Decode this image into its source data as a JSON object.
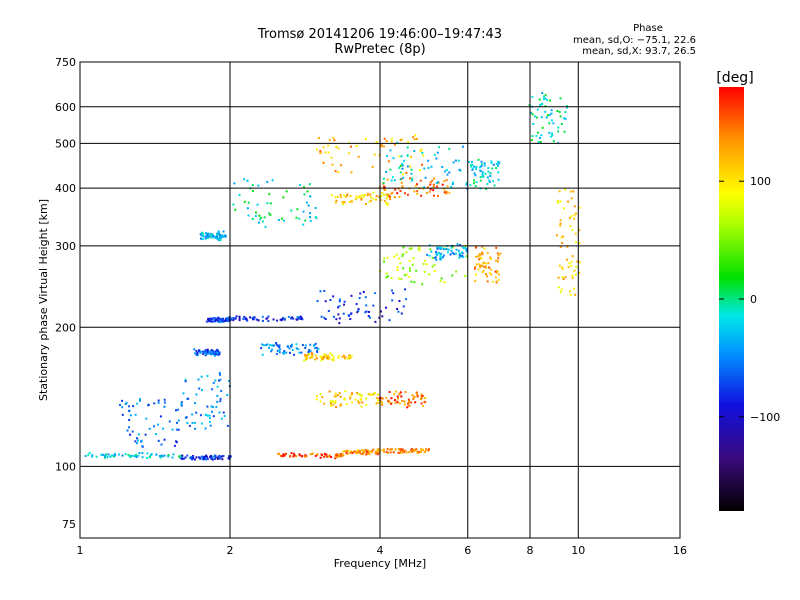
{
  "chart_data": {
    "type": "scatter",
    "title": "Tromsø 20141206 19:46:00–19:47:43",
    "subtitle": "RwPretec (8p)",
    "xlabel": "Frequency [MHz]",
    "ylabel": "Stationary phase Virtual Height [km]",
    "x_scale": "log",
    "y_scale": "log",
    "xlim": [
      1,
      16
    ],
    "ylim": [
      70,
      750
    ],
    "x_ticks": [
      "1",
      "2",
      "4",
      "6",
      "8",
      "10",
      "16"
    ],
    "y_ticks": [
      "75",
      "100",
      "200",
      "300",
      "400",
      "500",
      "600",
      "750"
    ],
    "grid": true,
    "stats": {
      "heading": "Phase",
      "line_o": "mean, sd,O: −75.1, 22.6",
      "line_x": "mean, sd,X:  93.7, 26.5"
    },
    "colorbar": {
      "label": "[deg]",
      "ticks": [
        "100",
        "0",
        "−100"
      ],
      "tick_values": [
        100,
        0,
        -100
      ],
      "range": [
        -180,
        180
      ]
    },
    "traces": [
      {
        "x": [
          1.0,
          1.6
        ],
        "y": [
          105,
          106
        ],
        "phase": -30
      },
      {
        "x": [
          1.6,
          2.0
        ],
        "y": [
          104.5,
          104.5
        ],
        "phase": -100
      },
      {
        "x": [
          2.5,
          3.4
        ],
        "y": [
          105,
          106
        ],
        "phase": 160
      },
      {
        "x": [
          3.4,
          4.0
        ],
        "y": [
          107,
          108
        ],
        "phase": 140
      },
      {
        "x": [
          4.0,
          5.0
        ],
        "y": [
          108,
          108
        ],
        "phase": 140
      },
      {
        "x": [
          1.2,
          1.6
        ],
        "y": [
          110,
          140
        ],
        "phase": -70
      },
      {
        "x": [
          1.6,
          2.0
        ],
        "y": [
          120,
          160
        ],
        "phase": -60
      },
      {
        "x": [
          1.7,
          1.9
        ],
        "y": [
          175,
          178
        ],
        "phase": -85
      },
      {
        "x": [
          1.8,
          2.0
        ],
        "y": [
          207,
          208
        ],
        "phase": -95
      },
      {
        "x": [
          1.75,
          1.95
        ],
        "y": [
          310,
          320
        ],
        "phase": -40
      },
      {
        "x": [
          2.0,
          3.0
        ],
        "y": [
          330,
          420
        ],
        "phase": -20
      },
      {
        "x": [
          2.3,
          3.0
        ],
        "y": [
          175,
          185
        ],
        "phase": -60
      },
      {
        "x": [
          2.8,
          3.5
        ],
        "y": [
          170,
          175
        ],
        "phase": 110
      },
      {
        "x": [
          3.0,
          4.0
        ],
        "y": [
          135,
          145
        ],
        "phase": 110
      },
      {
        "x": [
          4.0,
          5.0
        ],
        "y": [
          135,
          145
        ],
        "phase": 150
      },
      {
        "x": [
          3.2,
          4.2
        ],
        "y": [
          370,
          390
        ],
        "phase": 110
      },
      {
        "x": [
          4.0,
          5.5
        ],
        "y": [
          380,
          420
        ],
        "phase": 150
      },
      {
        "x": [
          3.0,
          5.0
        ],
        "y": [
          430,
          520
        ],
        "phase": 120
      },
      {
        "x": [
          4.0,
          6.0
        ],
        "y": [
          250,
          300
        ],
        "phase": 60
      },
      {
        "x": [
          5.0,
          6.0
        ],
        "y": [
          280,
          300
        ],
        "phase": -50
      },
      {
        "x": [
          2.0,
          2.8
        ],
        "y": [
          208,
          210
        ],
        "phase": -100
      },
      {
        "x": [
          3.0,
          4.5
        ],
        "y": [
          205,
          240
        ],
        "phase": -100
      },
      {
        "x": [
          4.0,
          6.0
        ],
        "y": [
          400,
          500
        ],
        "phase": -30
      },
      {
        "x": [
          6.2,
          7.0
        ],
        "y": [
          250,
          300
        ],
        "phase": 130
      },
      {
        "x": [
          6.0,
          7.0
        ],
        "y": [
          400,
          460
        ],
        "phase": -30
      },
      {
        "x": [
          9.0,
          10.0
        ],
        "y": [
          230,
          400
        ],
        "phase": 110
      },
      {
        "x": [
          8.0,
          9.5
        ],
        "y": [
          500,
          640
        ],
        "phase": -20
      }
    ]
  }
}
